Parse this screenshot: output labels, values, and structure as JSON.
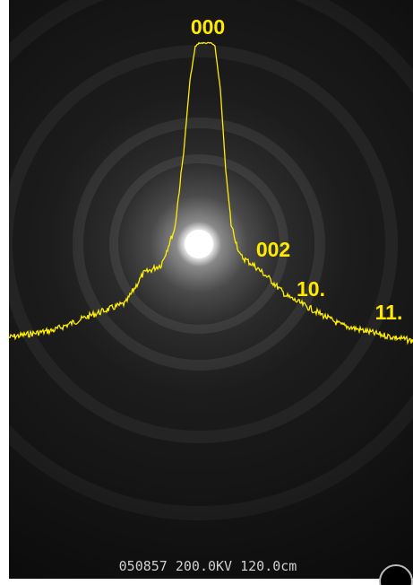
{
  "labels": {
    "peak_000": "000",
    "peak_002": "002",
    "peak_10": "10.",
    "peak_11": "11."
  },
  "footer": "050857 200.0KV 120.0cm"
}
